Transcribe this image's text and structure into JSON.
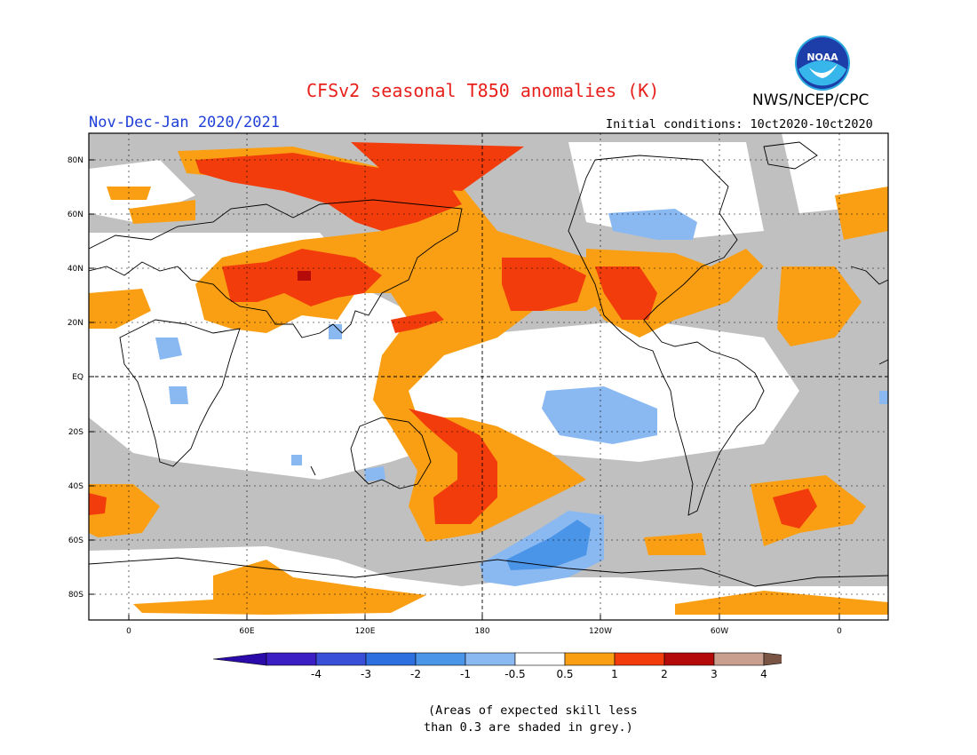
{
  "header": {
    "title": "CFSv2 seasonal T850 anomalies (K)",
    "agency": "NWS/NCEP/CPC",
    "period": "Nov-Dec-Jan 2020/2021",
    "initial_conditions": "Initial conditions: 10ct2020-10ct2020"
  },
  "logo": {
    "text": "NOAA"
  },
  "map": {
    "lat_labels": [
      "80N",
      "60N",
      "40N",
      "20N",
      "EQ",
      "20S",
      "40S",
      "60S",
      "80S"
    ],
    "lon_labels": [
      "0",
      "60E",
      "120E",
      "180",
      "120W",
      "60W",
      "0"
    ]
  },
  "colorbar": {
    "labels": [
      "-4",
      "-3",
      "-2",
      "-1",
      "-0.5",
      "0.5",
      "1",
      "2",
      "3",
      "4"
    ],
    "colors": [
      "#3b1ec4",
      "#3a4fd8",
      "#2e6fe0",
      "#4b95e8",
      "#8ab9f2",
      "#ffffff",
      "#fa9f14",
      "#f23c0c",
      "#b40a0a",
      "#c9a090"
    ],
    "arrow_low_color": "#2a0aa8",
    "arrow_high_color": "#7a5545"
  },
  "footnote": {
    "line1": "(Areas of expected skill less",
    "line2": "than 0.3 are shaded in grey.)"
  }
}
